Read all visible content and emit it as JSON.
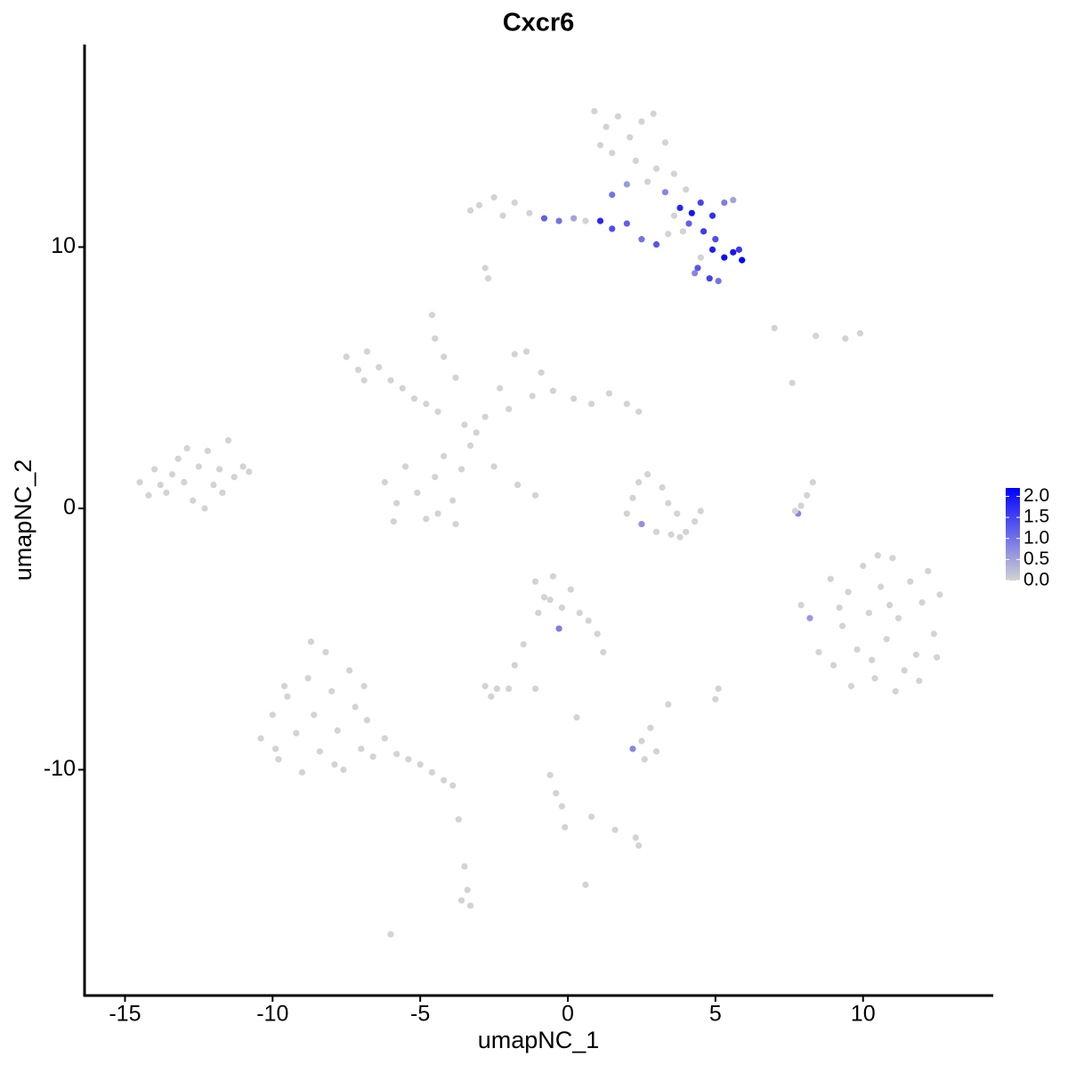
{
  "chart_data": {
    "type": "scatter",
    "title": "Cxcr6",
    "x_label": "umapNC_1",
    "y_label": "umapNC_2",
    "x": [
      -14.5,
      -14.0,
      -13.6,
      -13.2,
      -13.0,
      -12.7,
      -12.5,
      -12.2,
      -12.0,
      -11.8,
      -11.5,
      -11.3,
      -11.0,
      -10.8,
      -13.8,
      -12.9,
      -12.3,
      -14.2,
      -11.7,
      -13.4,
      -7.5,
      -7.1,
      -6.8,
      -6.4,
      -6.0,
      -5.6,
      -5.2,
      -6.9,
      -4.8,
      -4.4,
      -4.6,
      -4.5,
      -4.2,
      -3.8,
      -3.5,
      -3.1,
      -2.8,
      -3.3,
      -6.2,
      -5.8,
      -5.5,
      -5.1,
      -4.8,
      -4.5,
      -4.2,
      -3.9,
      -3.6,
      -5.9,
      -4.4,
      -3.8,
      -2.5,
      -1.7,
      -1.1,
      -2.3,
      -1.8,
      -1.4,
      -0.9,
      -0.5,
      0.2,
      0.8,
      1.4,
      2.0,
      2.4,
      -2.0,
      -1.2,
      0.9,
      1.3,
      1.7,
      2.1,
      2.5,
      2.9,
      3.3,
      1.5,
      2.3,
      3.0,
      1.1,
      3.6,
      2.0,
      1.5,
      2.7,
      3.3,
      4.0,
      -3.0,
      -2.5,
      -2.2,
      -1.8,
      -1.3,
      -0.8,
      -0.3,
      0.2,
      0.6,
      1.1,
      1.5,
      2.0,
      2.5,
      3.0,
      3.4,
      -3.3,
      -2.8,
      -2.7,
      3.8,
      4.2,
      4.5,
      4.9,
      5.3,
      5.6,
      4.1,
      4.6,
      4.9,
      5.3,
      5.6,
      5.9,
      5.0,
      4.4,
      4.8,
      5.1,
      4.5,
      3.9,
      5.8,
      4.3,
      3.6,
      2.4,
      2.7,
      3.2,
      3.4,
      2.0,
      2.5,
      3.0,
      3.5,
      4.0,
      4.3,
      4.5,
      3.7,
      2.2,
      3.8,
      7.8,
      7.9,
      8.1,
      8.3,
      7.7,
      7.0,
      8.4,
      9.4,
      9.9,
      7.6,
      8.9,
      9.3,
      9.0,
      9.5,
      9.8,
      10.0,
      10.2,
      10.4,
      10.6,
      10.8,
      11.0,
      11.2,
      11.4,
      11.6,
      11.8,
      12.0,
      12.2,
      12.4,
      12.6,
      9.6,
      11.1,
      8.5,
      10.3,
      9.2,
      11.9,
      10.9,
      8.2,
      7.9,
      10.5,
      12.5,
      -10.4,
      -10.0,
      -9.8,
      -9.5,
      -9.2,
      -9.0,
      -8.8,
      -8.6,
      -8.4,
      -8.2,
      -8.0,
      -7.8,
      -7.6,
      -7.4,
      -7.2,
      -7.0,
      -6.8,
      -6.6,
      -6.2,
      -5.8,
      -5.4,
      -5.0,
      -4.6,
      -4.2,
      -3.9,
      -9.6,
      -8.7,
      -7.9,
      -9.9,
      -6.9,
      -1.1,
      -0.8,
      -0.5,
      -0.2,
      0.1,
      0.4,
      -1.0,
      -0.3,
      0.7,
      1.0,
      1.2,
      -1.5,
      -1.8,
      -0.6,
      -2.8,
      -2.4,
      -2.0,
      -2.6,
      -1.1,
      0.3,
      2.2,
      2.5,
      2.8,
      3.0,
      2.6,
      3.4,
      5.0,
      5.1,
      -0.6,
      -0.4,
      -0.2,
      -0.1,
      0.8,
      1.6,
      2.3,
      2.4,
      -3.7,
      -3.5,
      -3.4,
      -3.3,
      -3.6,
      -6.0,
      0.6
    ],
    "values": [
      1.0,
      1.5,
      0.6,
      1.9,
      1.0,
      0.3,
      1.6,
      2.2,
      0.9,
      1.5,
      2.6,
      1.2,
      1.6,
      1.4,
      0.9,
      2.3,
      0.0,
      0.5,
      0.6,
      1.3,
      5.8,
      5.3,
      6.0,
      5.4,
      4.9,
      4.6,
      4.2,
      4.9,
      4.0,
      3.7,
      7.4,
      6.5,
      5.8,
      5.0,
      3.2,
      2.9,
      3.5,
      2.4,
      1.0,
      0.2,
      1.6,
      0.6,
      -0.4,
      1.2,
      2.0,
      0.3,
      1.5,
      -0.5,
      -0.2,
      -0.6,
      1.6,
      0.9,
      0.5,
      4.6,
      5.9,
      6.0,
      5.2,
      4.5,
      4.2,
      4.0,
      4.4,
      4.0,
      3.7,
      3.8,
      4.3,
      15.2,
      14.6,
      15.0,
      14.2,
      14.8,
      15.1,
      14.0,
      13.6,
      13.3,
      13.0,
      13.9,
      12.8,
      12.4,
      12.0,
      12.5,
      12.1,
      12.2,
      11.6,
      11.9,
      11.2,
      11.7,
      11.3,
      11.1,
      11.0,
      11.1,
      11.0,
      11.0,
      10.7,
      10.9,
      10.3,
      10.1,
      10.5,
      11.4,
      9.2,
      8.8,
      11.5,
      11.3,
      11.7,
      11.2,
      11.7,
      11.8,
      10.9,
      10.6,
      9.9,
      9.6,
      9.8,
      9.5,
      10.3,
      9.2,
      8.8,
      8.7,
      9.6,
      10.6,
      9.9,
      9.0,
      11.2,
      1.0,
      1.3,
      0.8,
      0.2,
      -0.2,
      -0.6,
      -0.9,
      -1.0,
      -0.9,
      -0.5,
      -0.1,
      -0.2,
      0.4,
      -1.1,
      -0.2,
      0.1,
      0.5,
      1.0,
      -0.1,
      6.9,
      6.6,
      6.5,
      6.7,
      4.8,
      -2.7,
      -4.5,
      -6.0,
      -3.2,
      -5.4,
      -2.2,
      -4.0,
      -6.5,
      -3.0,
      -5.0,
      -1.9,
      -4.2,
      -6.2,
      -2.8,
      -5.6,
      -3.6,
      -2.4,
      -4.8,
      -3.3,
      -6.8,
      -7.0,
      -5.5,
      -5.8,
      -3.8,
      -6.6,
      -3.7,
      -4.2,
      -3.7,
      -1.8,
      -5.7,
      -8.8,
      -7.9,
      -9.6,
      -7.2,
      -8.6,
      -10.1,
      -6.5,
      -7.9,
      -9.3,
      -5.5,
      -7.0,
      -8.5,
      -10.0,
      -6.2,
      -7.6,
      -9.2,
      -8.1,
      -9.5,
      -8.8,
      -9.4,
      -9.6,
      -9.8,
      -10.1,
      -10.4,
      -10.6,
      -6.8,
      -5.1,
      -9.8,
      -9.2,
      -6.8,
      -2.8,
      -3.4,
      -2.6,
      -3.8,
      -3.1,
      -4.0,
      -4.0,
      -4.6,
      -4.3,
      -4.8,
      -5.5,
      -5.2,
      -6.0,
      -3.5,
      -6.8,
      -6.9,
      -6.9,
      -7.2,
      -6.9,
      -8.0,
      -9.2,
      -8.9,
      -8.4,
      -9.3,
      -9.6,
      -7.5,
      -7.3,
      -6.9,
      -10.2,
      -10.9,
      -11.4,
      -12.2,
      -11.8,
      -12.3,
      -12.6,
      -12.9,
      -11.9,
      -13.7,
      -14.6,
      -15.2,
      -15.0,
      -16.3,
      -14.4
    ],
    "color_values": [
      0,
      0,
      0,
      0,
      0,
      0,
      0,
      0,
      0,
      0,
      0,
      0,
      0,
      0,
      0,
      0,
      0,
      0,
      0,
      0,
      0,
      0,
      0,
      0,
      0,
      0,
      0,
      0,
      0,
      0,
      0,
      0,
      0,
      0,
      0,
      0,
      0,
      0,
      0,
      0,
      0,
      0,
      0,
      0,
      0,
      0,
      0,
      0,
      0,
      0,
      0,
      0,
      0,
      0,
      0,
      0,
      0,
      0,
      0,
      0,
      0,
      0,
      0,
      0,
      0,
      0,
      0,
      0,
      0,
      0,
      0,
      0,
      0,
      0,
      0,
      0,
      0,
      0.6,
      1.0,
      0,
      0.8,
      0,
      0,
      0,
      0,
      0,
      0,
      1.2,
      1.0,
      0.5,
      0,
      1.8,
      1.4,
      1.2,
      1.0,
      1.3,
      0,
      0,
      0,
      0,
      1.8,
      2.0,
      1.5,
      1.7,
      0.9,
      0.5,
      1.2,
      1.6,
      1.9,
      2.1,
      2.0,
      2.2,
      1.4,
      1.3,
      1.5,
      1.0,
      0,
      0,
      1.6,
      0.8,
      0,
      0,
      0,
      0,
      0,
      0,
      0.7,
      0,
      0,
      0,
      0,
      0,
      0,
      0,
      0,
      0.8,
      0,
      0,
      0,
      0,
      0,
      0,
      0,
      0,
      0,
      0,
      0,
      0,
      0,
      0,
      0,
      0,
      0,
      0,
      0,
      0,
      0,
      0,
      0,
      0,
      0,
      0,
      0,
      0,
      0,
      0,
      0,
      0,
      0,
      0,
      0,
      0.6,
      0,
      0,
      0,
      0,
      0,
      0,
      0,
      0,
      0,
      0,
      0,
      0,
      0,
      0,
      0,
      0,
      0,
      0,
      0,
      0,
      0,
      0,
      0,
      0,
      0,
      0,
      0,
      0,
      0,
      0,
      0,
      0,
      0,
      0,
      0,
      0,
      0,
      0,
      0,
      0,
      0.9,
      0,
      0,
      0,
      0,
      0,
      0,
      0,
      0,
      0,
      0,
      0,
      0,
      0.8,
      0,
      0,
      0,
      0,
      0,
      0,
      0,
      0,
      0,
      0,
      0,
      0,
      0,
      0,
      0,
      0,
      0,
      0,
      0,
      0,
      0,
      0
    ],
    "color_low": "#d3d3d3",
    "color_high": "#0000ff",
    "clim": [
      0,
      2.2
    ],
    "cticks": [
      {
        "value": 0,
        "label": "0.0"
      },
      {
        "value": 0.5,
        "label": "0.5"
      },
      {
        "value": 1,
        "label": "1.0"
      },
      {
        "value": 1.5,
        "label": "1.5"
      },
      {
        "value": 2,
        "label": "2.0"
      }
    ],
    "xlim": [
      -16.37,
      14.38
    ],
    "ylim": [
      -18.64,
      17.75
    ],
    "xticks": [
      -15,
      -10,
      -5,
      0,
      5,
      10
    ],
    "yticks": [
      -10,
      0,
      10
    ]
  }
}
